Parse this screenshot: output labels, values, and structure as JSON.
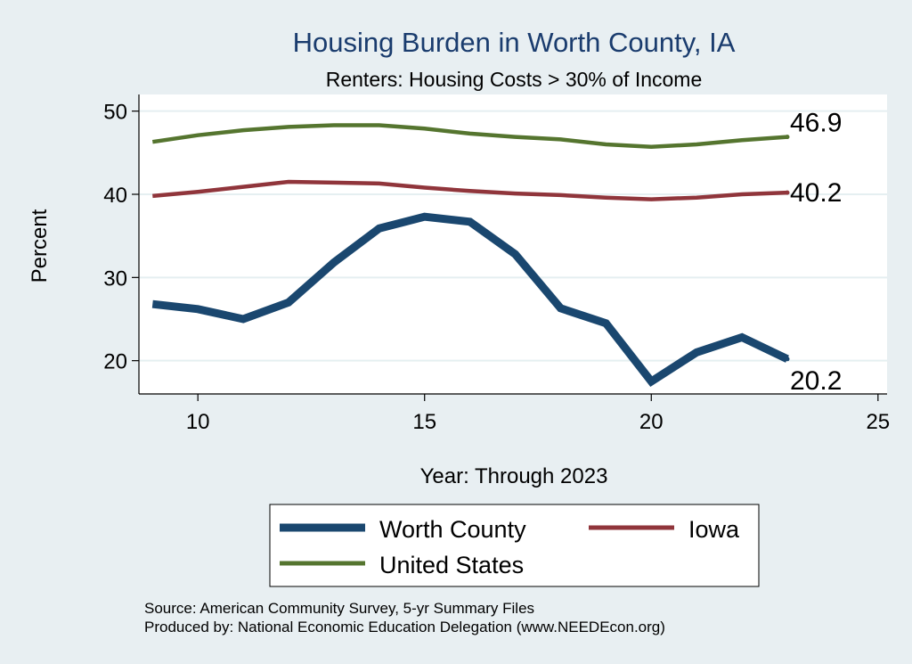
{
  "chart_data": {
    "type": "line",
    "title": "Housing Burden in Worth County, IA",
    "subtitle": "Renters: Housing Costs > 30% of Income",
    "xlabel": "Year: Through 2023",
    "ylabel": "Percent",
    "xlim": [
      8.7,
      25.2
    ],
    "ylim": [
      16,
      52
    ],
    "xticks": [
      10,
      15,
      20,
      25
    ],
    "yticks": [
      20,
      30,
      40,
      50
    ],
    "grid": true,
    "x": [
      9,
      10,
      11,
      12,
      13,
      14,
      15,
      16,
      17,
      18,
      19,
      20,
      21,
      22,
      23
    ],
    "series": [
      {
        "name": "Worth County",
        "color": "#1a476f",
        "values": [
          26.8,
          26.2,
          25.0,
          27.0,
          31.8,
          35.9,
          37.3,
          36.7,
          32.8,
          26.3,
          24.5,
          17.5,
          21.0,
          22.8,
          20.2
        ],
        "end_label": "20.2"
      },
      {
        "name": "Iowa",
        "color": "#90353b",
        "values": [
          39.8,
          40.3,
          40.9,
          41.5,
          41.4,
          41.3,
          40.8,
          40.4,
          40.1,
          39.9,
          39.6,
          39.4,
          39.6,
          40.0,
          40.2
        ],
        "end_label": "40.2"
      },
      {
        "name": "United States",
        "color": "#55752f",
        "values": [
          46.3,
          47.1,
          47.7,
          48.1,
          48.3,
          48.3,
          47.9,
          47.3,
          46.9,
          46.6,
          46.0,
          45.7,
          46.0,
          46.5,
          46.9
        ],
        "end_label": "46.9"
      }
    ],
    "legend": {
      "placement": "bottom",
      "entries": [
        "Worth County",
        "Iowa",
        "United States"
      ]
    },
    "notes": [
      "Source: American Community Survey, 5-yr Summary Files",
      "Produced by: National Economic Education Delegation (www.NEEDEcon.org)"
    ]
  },
  "colors": {
    "background": "#e8eff2",
    "plot_background": "#ffffff",
    "grid": "#e5eff1",
    "title": "#1a3c6e"
  }
}
